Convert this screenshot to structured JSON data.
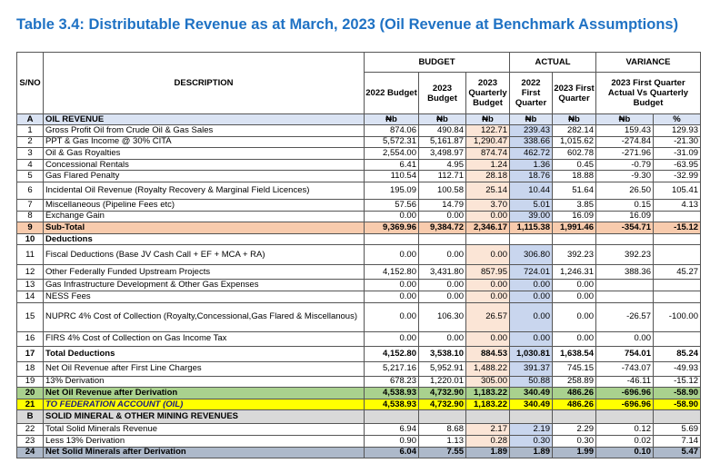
{
  "title": "Table 3.4: Distributable Revenue as at March, 2023 (Oil Revenue at Benchmark Assumptions)",
  "header": {
    "sno": "S/NO",
    "description": "DESCRIPTION",
    "budget": "BUDGET",
    "actual": "ACTUAL",
    "variance": "VARIANCE",
    "columns": [
      "2022 Budget",
      "2023 Budget",
      "2023 Quarterly Budget",
      "2022 First Quarter",
      "2023 First Quarter",
      "2023 First Quarter Actual Vs Quarterly Budget"
    ],
    "section": [
      "A",
      "OIL REVENUE"
    ],
    "units": [
      "₦b",
      "₦b",
      "₦b",
      "₦b",
      "₦b",
      "₦b",
      "%"
    ]
  },
  "rows": [
    [
      "1",
      "Gross Profit Oil from Crude Oil & Gas Sales",
      "874.06",
      "490.84",
      "122.71",
      "239.43",
      "282.14",
      "159.43",
      "129.93"
    ],
    [
      "2",
      "PPT & Gas Income @ 30% CITA",
      "5,572.31",
      "5,161.87",
      "1,290.47",
      "338.66",
      "1,015.62",
      "-274.84",
      "-21.30"
    ],
    [
      "3",
      "Oil & Gas Royalties",
      "2,554.00",
      "3,498.97",
      "874.74",
      "462.72",
      "602.78",
      "-271.96",
      "-31.09"
    ],
    [
      "4",
      "Concessional Rentals",
      "6.41",
      "4.95",
      "1.24",
      "1.36",
      "0.45",
      "-0.79",
      "-63.95"
    ],
    [
      "5",
      "Gas Flared Penalty",
      "110.54",
      "112.71",
      "28.18",
      "18.76",
      "18.88",
      "-9.30",
      "-32.99"
    ],
    [
      "6",
      "Incidental Oil Revenue (Royalty Recovery & Marginal Field Licences)",
      "195.09",
      "100.58",
      "25.14",
      "10.44",
      "51.64",
      "26.50",
      "105.41"
    ],
    [
      "7",
      "Miscellaneous (Pipeline Fees etc)",
      "57.56",
      "14.79",
      "3.70",
      "5.01",
      "3.85",
      "0.15",
      "4.13"
    ],
    [
      "8",
      "Exchange Gain",
      "0.00",
      "0.00",
      "0.00",
      "39.00",
      "16.09",
      "16.09",
      null
    ],
    [
      "9",
      "Sub-Total",
      "9,369.96",
      "9,384.72",
      "2,346.17",
      "1,115.38",
      "1,991.46",
      "-354.71",
      "-15.12"
    ],
    [
      "10",
      "Deductions"
    ],
    [
      "11",
      "Fiscal Deductions (Base JV Cash Call + EF + MCA + RA)",
      "0.00",
      "0.00",
      "0.00",
      "306.80",
      "392.23",
      "392.23",
      null
    ],
    [
      "12",
      "Other Federally Funded Upstream Projects",
      "4,152.80",
      "3,431.80",
      "857.95",
      "724.01",
      "1,246.31",
      "388.36",
      "45.27"
    ],
    [
      "13",
      "Gas Infrastructure Development & Other Gas Expenses",
      "0.00",
      "0.00",
      "0.00",
      "0.00",
      "0.00",
      null,
      null
    ],
    [
      "14",
      "NESS Fees",
      "0.00",
      "0.00",
      "0.00",
      "0.00",
      "0.00",
      null,
      null
    ],
    [
      "15",
      "NUPRC 4% Cost of Collection (Royalty,Concessional,Gas Flared & Miscellanous)",
      "0.00",
      "106.30",
      "26.57",
      "0.00",
      "0.00",
      "-26.57",
      "-100.00"
    ],
    [
      "16",
      "FIRS 4% Cost of Collection on Gas Income Tax",
      "0.00",
      "0.00",
      "0.00",
      "0.00",
      "0.00",
      "0.00",
      null
    ],
    [
      "17",
      "Total Deductions",
      "4,152.80",
      "3,538.10",
      "884.53",
      "1,030.81",
      "1,638.54",
      "754.01",
      "85.24"
    ],
    [
      "18",
      "Net Oil Revenue after First Line Charges",
      "5,217.16",
      "5,952.91",
      "1,488.22",
      "391.37",
      "745.15",
      "-743.07",
      "-49.93"
    ],
    [
      "19",
      "13% Derivation",
      "678.23",
      "1,220.01",
      "305.00",
      "50.88",
      "258.89",
      "-46.11",
      "-15.12"
    ],
    [
      "20",
      "Net Oil Revenue after Derivation",
      "4,538.93",
      "4,732.90",
      "1,183.22",
      "340.49",
      "486.26",
      "-696.96",
      "-58.90"
    ],
    [
      "21",
      "TO FEDERATION ACCOUNT (OIL)",
      "4,538.93",
      "4,732.90",
      "1,183.22",
      "340.49",
      "486.26",
      "-696.96",
      "-58.90"
    ],
    [
      "B",
      "SOLID MINERAL & OTHER MINING REVENUES"
    ],
    [
      "22",
      "Total Solid Minerals Revenue",
      "6.94",
      "8.68",
      "2.17",
      "2.19",
      "2.29",
      "0.12",
      "5.69"
    ],
    [
      "23",
      "Less 13% Derivation",
      "0.90",
      "1.13",
      "0.28",
      "0.30",
      "0.30",
      "0.02",
      "7.14"
    ],
    [
      "24",
      "Net Solid Minerals after Derivation",
      "6.04",
      "7.55",
      "1.89",
      "1.89",
      "1.99",
      "0.10",
      "5.47"
    ]
  ]
}
